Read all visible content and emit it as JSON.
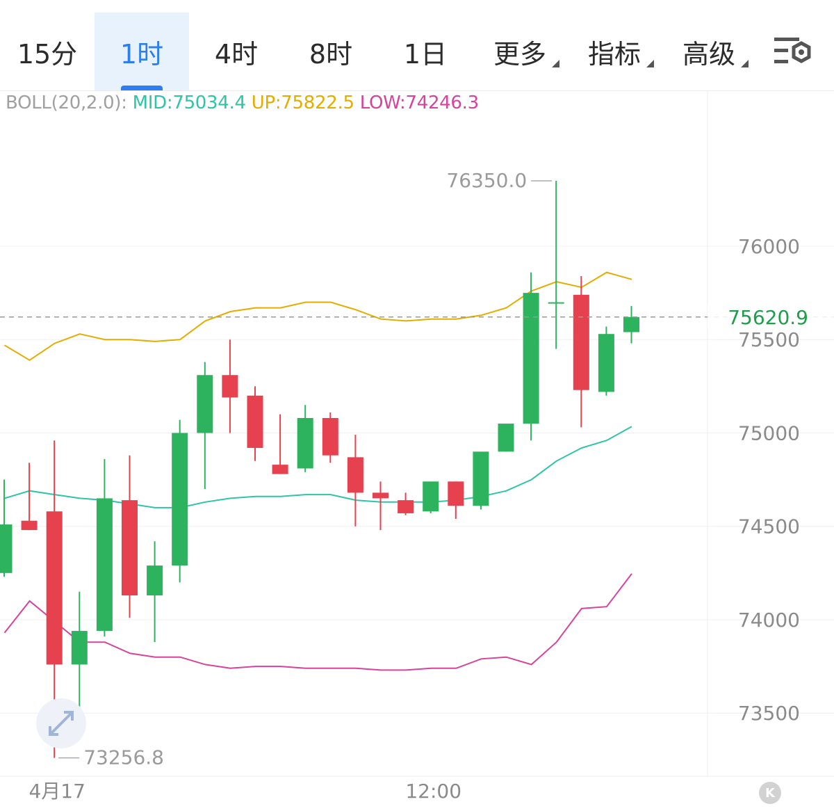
{
  "tabs": [
    {
      "label": "15分",
      "active": false
    },
    {
      "label": "1时",
      "active": true
    },
    {
      "label": "4时",
      "active": false
    },
    {
      "label": "8时",
      "active": false
    },
    {
      "label": "1日",
      "active": false
    },
    {
      "label": "更多",
      "active": false,
      "dropdown": true
    },
    {
      "label": "指标",
      "active": false,
      "dropdown": true
    },
    {
      "label": "高级",
      "active": false,
      "dropdown": true
    }
  ],
  "settings_icon": "chart-settings-icon",
  "indicator": {
    "label": "BOLL(20,2.0):",
    "mid": "MID:75034.4",
    "up": "UP:75822.5",
    "low": "LOW:74246.3"
  },
  "expand_icon": "expand-arrows-icon",
  "k_button_label": "K",
  "colors": {
    "up": "#2db35d",
    "down": "#e5414f",
    "mid": "#2ec4a8",
    "upper": "#e3ad00",
    "lower": "#d6439c",
    "accent": "#2d7ef0",
    "price_label": "#1e9e4a"
  },
  "chart_data": {
    "type": "candlestick",
    "x_labels": [
      "4月17",
      "12:00"
    ],
    "x_label_index": [
      2,
      17
    ],
    "y_ticks": [
      76000,
      75500,
      75000,
      74500,
      74000,
      73500
    ],
    "ylim": [
      73180,
      76750
    ],
    "current_price": "75620.9",
    "max_label": "76350.0",
    "min_label": "73256.8",
    "candles": [
      {
        "o": 74250,
        "h": 74750,
        "l": 74230,
        "c": 74510
      },
      {
        "o": 74530,
        "h": 74840,
        "l": 74480,
        "c": 74480
      },
      {
        "o": 74580,
        "h": 74960,
        "l": 73260,
        "c": 73760
      },
      {
        "o": 73760,
        "h": 74150,
        "l": 73390,
        "c": 73940
      },
      {
        "o": 73940,
        "h": 74860,
        "l": 73910,
        "c": 74650
      },
      {
        "o": 74640,
        "h": 74880,
        "l": 74010,
        "c": 74130
      },
      {
        "o": 74130,
        "h": 74420,
        "l": 73880,
        "c": 74290
      },
      {
        "o": 74290,
        "h": 75070,
        "l": 74200,
        "c": 75000
      },
      {
        "o": 75000,
        "h": 75380,
        "l": 74700,
        "c": 75310
      },
      {
        "o": 75310,
        "h": 75500,
        "l": 75000,
        "c": 75190
      },
      {
        "o": 75200,
        "h": 75250,
        "l": 74850,
        "c": 74920
      },
      {
        "o": 74830,
        "h": 75100,
        "l": 74780,
        "c": 74780
      },
      {
        "o": 74810,
        "h": 75150,
        "l": 74790,
        "c": 75080
      },
      {
        "o": 75080,
        "h": 75110,
        "l": 74840,
        "c": 74880
      },
      {
        "o": 74870,
        "h": 74990,
        "l": 74500,
        "c": 74680
      },
      {
        "o": 74680,
        "h": 74740,
        "l": 74480,
        "c": 74650
      },
      {
        "o": 74640,
        "h": 74680,
        "l": 74560,
        "c": 74570
      },
      {
        "o": 74580,
        "h": 74710,
        "l": 74570,
        "c": 74740
      },
      {
        "o": 74740,
        "h": 74740,
        "l": 74540,
        "c": 74610
      },
      {
        "o": 74610,
        "h": 74890,
        "l": 74590,
        "c": 74900
      },
      {
        "o": 74900,
        "h": 75050,
        "l": 74900,
        "c": 75050
      },
      {
        "o": 75050,
        "h": 75860,
        "l": 74960,
        "c": 75750
      },
      {
        "o": 75700,
        "h": 76350,
        "l": 75450,
        "c": 75700
      },
      {
        "o": 75740,
        "h": 75840,
        "l": 75030,
        "c": 75230
      },
      {
        "o": 75220,
        "h": 75570,
        "l": 75200,
        "c": 75530
      },
      {
        "o": 75540,
        "h": 75680,
        "l": 75480,
        "c": 75620.9
      }
    ],
    "series": [
      {
        "values": [
          75470,
          75390,
          75480,
          75530,
          75500,
          75500,
          75490,
          75500,
          75600,
          75650,
          75670,
          75670,
          75700,
          75700,
          75660,
          75610,
          75600,
          75610,
          75610,
          75630,
          75670,
          75760,
          75810,
          75780,
          75860,
          75822.5
        ]
      },
      {
        "values": [
          74650,
          74690,
          74670,
          74650,
          74640,
          74620,
          74600,
          74600,
          74630,
          74650,
          74660,
          74660,
          74670,
          74670,
          74640,
          74630,
          74630,
          74630,
          74640,
          74660,
          74690,
          74750,
          74850,
          74920,
          74960,
          75034.4
        ]
      },
      {
        "values": [
          73930,
          74100,
          73990,
          73880,
          73880,
          73820,
          73800,
          73800,
          73760,
          73740,
          73750,
          73750,
          73740,
          73740,
          73740,
          73730,
          73730,
          73740,
          73740,
          73790,
          73800,
          73760,
          73880,
          74060,
          74070,
          74246.3
        ]
      }
    ]
  }
}
